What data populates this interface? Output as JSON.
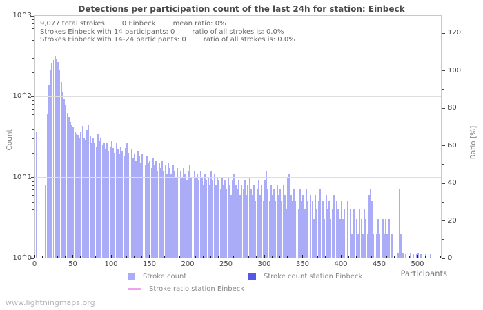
{
  "chart": {
    "title": "Detections per participation count of the last 24h for station: Einbeck"
  },
  "annotations": {
    "lines": [
      [
        "9,077 total strokes",
        "0 Einbeck",
        "mean ratio: 0%"
      ],
      [
        "Strokes Einbeck with 14 participants: 0",
        "ratio of all strokes is: 0.0%"
      ],
      [
        "Strokes Einbeck with 14-24 participants: 0",
        "ratio of all strokes is: 0.0%"
      ]
    ]
  },
  "axes": {
    "left": {
      "label": "Count",
      "ticks": [
        "10^0",
        "10^1",
        "10^2",
        "10^3"
      ]
    },
    "right": {
      "label": "Ratio [%]",
      "ticks": [
        0,
        20,
        40,
        60,
        80,
        100,
        120
      ]
    },
    "x": {
      "label": "Participants",
      "ticks": [
        0,
        50,
        100,
        150,
        200,
        250,
        300,
        350,
        400,
        450,
        500
      ]
    }
  },
  "legend": {
    "items": [
      {
        "label": "Stroke count",
        "swatch": "square",
        "color": "#abacf8"
      },
      {
        "label": "Stroke count station Einbeck",
        "swatch": "square",
        "color": "#5457e8"
      },
      {
        "label": "Stroke ratio station Einbeck",
        "swatch": "line",
        "color": "#f0a2ee"
      }
    ]
  },
  "watermark": "www.lightningmaps.org",
  "colors": {
    "bar": "#abacf8",
    "bar_station": "#5457e8",
    "ratio_line": "#f0a2ee",
    "grid": "#dedede",
    "border": "#c9c9c9",
    "tick": "#444444",
    "title_text": "#4a4a4a",
    "annotation_text": "#666666",
    "axis_text": "#444444",
    "muted_text": "#888888",
    "watermark_text": "#b3b3b3"
  },
  "chart_data": {
    "type": "bar",
    "title": "Detections per participation count of the last 24h for station: Einbeck",
    "xlabel": "Participants",
    "ylabel": "Count",
    "ylabel_right": "Ratio [%]",
    "y_scale": "log10",
    "ylim": [
      1,
      1000
    ],
    "ylim_right": [
      0,
      130
    ],
    "xlim": [
      0,
      531
    ],
    "grid": "horizontal-at-log-decades",
    "legend_position": "bottom",
    "totals": {
      "total_strokes": 9077,
      "station_strokes": 0,
      "mean_ratio_percent": 0,
      "station_strokes_14_participants": 0,
      "station_strokes_14_24_participants": 0,
      "ratio_14_percent": 0.0,
      "ratio_14_24_percent": 0.0
    },
    "bins": {
      "x_start": 2,
      "x_step": 2
    },
    "series": [
      {
        "name": "Stroke count",
        "type": "bar",
        "color": "#abacf8",
        "values": [
          36,
          0,
          0,
          0,
          0,
          0,
          8,
          60,
          140,
          215,
          260,
          285,
          315,
          298,
          268,
          210,
          152,
          115,
          93,
          78,
          63,
          55,
          48,
          44,
          41,
          37,
          34,
          33,
          30,
          36,
          43,
          31,
          29,
          38,
          45,
          32,
          27,
          31,
          26,
          24,
          34,
          28,
          31,
          25,
          27,
          22,
          26,
          21,
          24,
          28,
          23,
          20,
          26,
          22,
          19,
          24,
          21,
          18,
          23,
          26,
          20,
          18,
          22,
          17,
          19,
          16,
          21,
          18,
          15,
          19,
          17,
          14,
          18,
          15,
          16,
          13,
          17,
          14,
          16,
          12,
          15,
          13,
          16,
          12,
          14,
          11,
          15,
          13,
          11,
          14,
          12,
          10,
          13,
          11,
          12,
          10,
          13,
          11,
          9,
          12,
          14,
          10,
          9,
          12,
          10,
          11,
          9,
          12,
          10,
          8,
          11,
          9,
          10,
          8,
          12,
          9,
          11,
          8,
          10,
          9,
          7,
          10,
          8,
          9,
          7,
          10,
          8,
          6,
          9,
          11,
          8,
          7,
          9,
          6,
          8,
          7,
          9,
          6,
          8,
          10,
          7,
          6,
          8,
          5,
          7,
          9,
          6,
          8,
          5,
          9,
          12,
          7,
          5,
          8,
          6,
          7,
          5,
          8,
          6,
          7,
          5,
          8,
          6,
          4,
          10,
          11,
          6,
          5,
          7,
          5,
          6,
          4,
          7,
          5,
          6,
          4,
          7,
          5,
          0,
          6,
          5,
          3,
          6,
          4,
          5,
          7,
          0,
          5,
          3,
          6,
          4,
          5,
          3,
          4,
          6,
          0,
          5,
          4,
          3,
          5,
          3,
          4,
          2,
          5,
          0,
          4,
          2,
          4,
          0,
          3,
          2,
          4,
          3,
          2,
          4,
          3,
          2,
          6,
          7,
          5,
          2,
          0,
          2,
          3,
          2,
          0,
          3,
          2,
          3,
          2,
          3,
          0,
          2,
          0,
          2,
          0,
          1.15,
          7,
          2,
          1.15,
          0,
          1.1,
          0,
          0,
          1.15,
          0,
          1.1,
          0,
          1.1,
          1.15,
          0,
          1.1,
          0,
          0,
          1.1,
          0,
          0,
          1.1,
          0,
          0
        ]
      },
      {
        "name": "Stroke count station Einbeck",
        "type": "bar",
        "color": "#5457e8",
        "values": []
      },
      {
        "name": "Stroke ratio station Einbeck",
        "type": "line",
        "color": "#f0a2ee",
        "values": []
      }
    ]
  }
}
